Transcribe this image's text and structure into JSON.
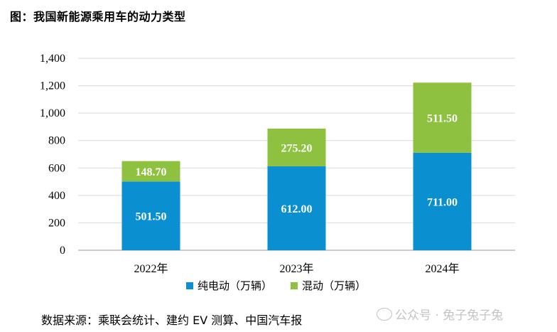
{
  "figure_title": "图：我国新能源乘用车的动力类型",
  "source": "数据来源：乘联会统计、建约 EV 测算、中国汽车报",
  "watermark": "公众号 · 兔子兔子兔",
  "colors": {
    "bev": "#0a8fd1",
    "hybrid": "#8dc13f",
    "grid": "#d9d9d9",
    "axis": "#999999"
  },
  "chart_data": {
    "type": "bar",
    "stacked": true,
    "title": "图：我国新能源乘用车的动力类型",
    "categories": [
      "2022年",
      "2023年",
      "2024年"
    ],
    "series": [
      {
        "name": "纯电动（万辆）",
        "values": [
          501.5,
          612.0,
          711.0
        ],
        "labels": [
          "501.50",
          "612.00",
          "711.00"
        ],
        "color": "#0a8fd1"
      },
      {
        "name": "混动（万辆）",
        "values": [
          148.7,
          275.2,
          511.5
        ],
        "labels": [
          "148.70",
          "275.20",
          "511.50"
        ],
        "color": "#8dc13f"
      }
    ],
    "yticks": [
      "0",
      "200",
      "400",
      "600",
      "800",
      "1,000",
      "1,200",
      "1,400"
    ],
    "ylim": [
      0,
      1400
    ],
    "xlabel": "",
    "ylabel": "",
    "grid": true,
    "legend_position": "bottom"
  }
}
